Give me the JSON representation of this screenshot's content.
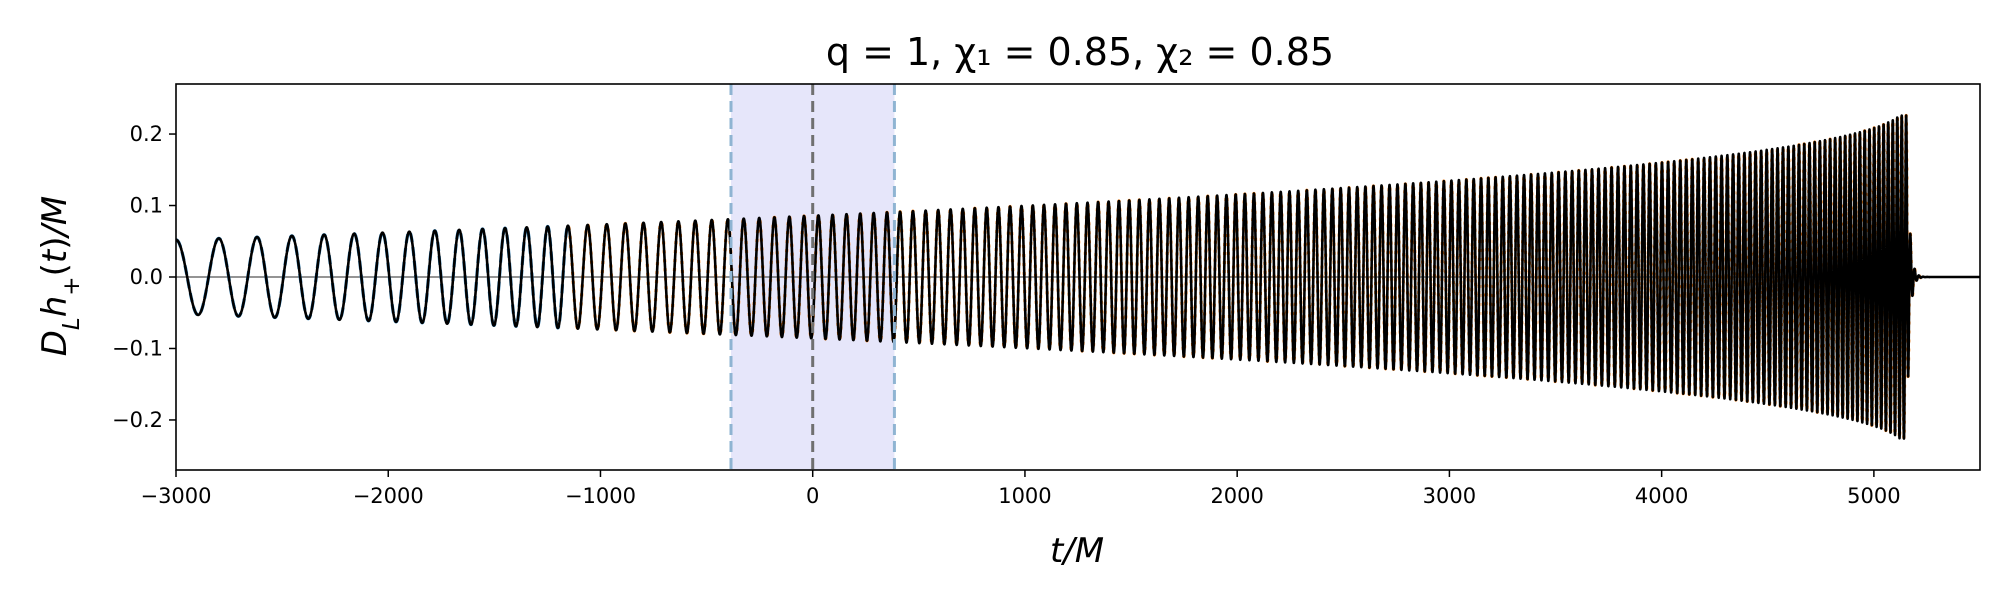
{
  "chart_data": {
    "type": "line",
    "title": "q = 1,   χ₁ = 0.85,   χ₂ = 0.85",
    "xlabel": "t/M",
    "ylabel": "D_L h_+(t)/M",
    "xlim": [
      -3000,
      5500
    ],
    "ylim": [
      -0.27,
      0.27
    ],
    "xticks": [
      -3000,
      -2000,
      -1000,
      0,
      1000,
      2000,
      3000,
      4000,
      5000
    ],
    "xtick_labels": [
      "−3000",
      "−2000",
      "−1000",
      "0",
      "1000",
      "2000",
      "3000",
      "4000",
      "5000"
    ],
    "yticks": [
      -0.2,
      -0.1,
      0.0,
      0.1,
      0.2
    ],
    "ytick_labels": [
      "−0.2",
      "−0.1",
      "0.0",
      "0.1",
      "0.2"
    ],
    "grid": false,
    "legend": "none",
    "zero_line": true,
    "shaded_region": {
      "x": [
        -385,
        385
      ],
      "color": "#e6e6fa"
    },
    "vertical_lines": [
      {
        "x": -385,
        "style": "dashed",
        "color": "#8fb4d2"
      },
      {
        "x": 0,
        "style": "dashed",
        "color": "#707070"
      },
      {
        "x": 385,
        "style": "dashed",
        "color": "#8fb4d2"
      }
    ],
    "waveform": {
      "t_merger": 5155,
      "start_amplitude": 0.052,
      "peak_amplitude": 0.245,
      "start_period": 215,
      "end_period": 20,
      "ringdown_end": 5210
    },
    "series": [
      {
        "style": "solid",
        "color": "#000000",
        "x": [
          -3000,
          5500
        ]
      },
      {
        "style": "dashed",
        "color": "#1f77b4",
        "x": [
          -3000,
          -1150
        ]
      },
      {
        "style": "dotted",
        "color": "#ff7f0e",
        "x": [
          -1150,
          5230
        ]
      }
    ]
  }
}
